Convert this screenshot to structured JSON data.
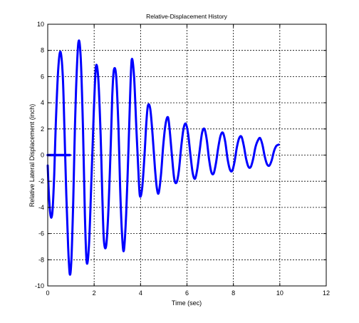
{
  "chart_data": {
    "type": "line",
    "title": "Relative-Displacement History",
    "xlabel": "Time (sec)",
    "ylabel": "Relative Lateral Displacement (inch)",
    "xlim": [
      0,
      12
    ],
    "ylim": [
      -10,
      10
    ],
    "xticks": [
      0,
      2,
      4,
      6,
      8,
      10,
      12
    ],
    "yticks": [
      -10,
      -8,
      -6,
      -4,
      -2,
      0,
      2,
      4,
      6,
      8,
      10
    ],
    "grid": true,
    "line_color": "#0000ff",
    "series": [
      {
        "name": "",
        "x": [
          0.0,
          0.05,
          0.12,
          0.2,
          0.28,
          0.35,
          0.45,
          0.55,
          0.65,
          0.72,
          0.8,
          0.88,
          0.95,
          1.02,
          1.1,
          1.15,
          1.22,
          1.32,
          1.42,
          1.52,
          1.6,
          1.68,
          1.78,
          1.88,
          1.95,
          2.0,
          2.08,
          2.18,
          2.28,
          2.35,
          2.42,
          2.52,
          2.62,
          2.72,
          2.78,
          2.85,
          2.95,
          3.05,
          3.12,
          3.2,
          3.28,
          3.38,
          3.48,
          3.55,
          3.62,
          3.72,
          3.82,
          3.9,
          3.97,
          4.07,
          4.17,
          4.25,
          4.32,
          4.42,
          4.52,
          4.62,
          4.7,
          4.78,
          4.88,
          4.98,
          5.08,
          5.18,
          5.25,
          5.35,
          5.45,
          5.55,
          5.65,
          5.75,
          5.85,
          5.95,
          6.05,
          6.15,
          6.25,
          6.35,
          6.45,
          6.55,
          6.65,
          6.75,
          6.85,
          6.95,
          7.05,
          7.15,
          7.25,
          7.35,
          7.45,
          7.55,
          7.65,
          7.75,
          7.85,
          7.95,
          8.05,
          8.15,
          8.25,
          8.35,
          8.45,
          8.55,
          8.65,
          8.75,
          8.85,
          8.95,
          9.05,
          9.15,
          9.25,
          9.35,
          9.45,
          9.55,
          9.65,
          9.75,
          9.85,
          9.95
        ],
        "y": [
          -0.8,
          -3.0,
          -4.6,
          -4.4,
          -1.5,
          2.5,
          6.5,
          7.9,
          6.0,
          2.0,
          -3.0,
          -7.0,
          -9.1,
          -8.0,
          -3.5,
          0.5,
          5.0,
          8.6,
          7.5,
          2.0,
          -4.5,
          -8.2,
          -6.8,
          -2.0,
          1.5,
          4.0,
          6.8,
          5.8,
          1.5,
          -3.0,
          -6.5,
          -6.9,
          -4.0,
          1.0,
          4.5,
          6.5,
          6.0,
          2.0,
          -2.5,
          -6.0,
          -7.3,
          -4.5,
          0.5,
          4.5,
          7.3,
          6.0,
          2.0,
          -1.0,
          -3.1,
          -2.5,
          0.0,
          2.5,
          3.8,
          3.5,
          1.5,
          -1.0,
          -2.5,
          -2.9,
          -1.5,
          0.8,
          2.4,
          2.9,
          2.0,
          0.0,
          -1.8,
          -2.1,
          -1.2,
          0.6,
          2.0,
          2.4,
          1.6,
          0.0,
          -1.4,
          -1.8,
          -1.0,
          0.4,
          1.7,
          2.0,
          1.2,
          -0.3,
          -1.3,
          -1.4,
          -0.6,
          0.6,
          1.5,
          1.7,
          1.0,
          -0.3,
          -1.1,
          -1.2,
          -0.5,
          0.6,
          1.3,
          1.4,
          0.7,
          -0.3,
          -0.9,
          -0.9,
          -0.3,
          0.6,
          1.1,
          1.3,
          0.8,
          -0.1,
          -0.7,
          -0.8,
          -0.4,
          0.3,
          0.7,
          0.8
        ]
      }
    ],
    "flat_segment": {
      "x": [
        0.0,
        0.95
      ],
      "y": [
        0.0,
        0.0
      ]
    }
  }
}
